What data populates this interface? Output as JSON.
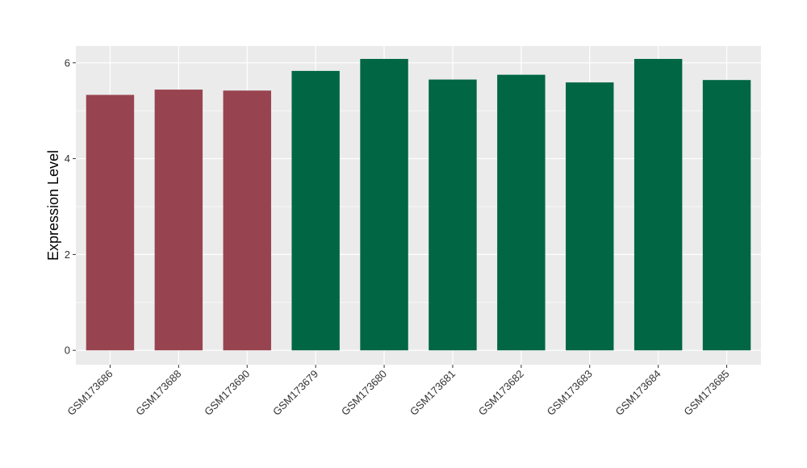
{
  "chart_data": {
    "type": "bar",
    "title": "",
    "xlabel": "",
    "ylabel": "Expression Level",
    "ylim": [
      -0.3,
      6.35
    ],
    "yticks": [
      0,
      2,
      4,
      6
    ],
    "grid": true,
    "legend": "none",
    "categories": [
      "GSM173686",
      "GSM173688",
      "GSM173690",
      "GSM173679",
      "GSM173680",
      "GSM173681",
      "GSM173682",
      "GSM173683",
      "GSM173684",
      "GSM173685"
    ],
    "values": [
      5.33,
      5.44,
      5.42,
      5.83,
      6.08,
      5.65,
      5.75,
      5.59,
      6.08,
      5.64
    ],
    "bar_colors": [
      "#984450",
      "#984450",
      "#984450",
      "#006644",
      "#006644",
      "#006644",
      "#006644",
      "#006644",
      "#006644",
      "#006644"
    ],
    "panel_background": "#EBEBEB",
    "grid_color": "#FFFFFF"
  }
}
